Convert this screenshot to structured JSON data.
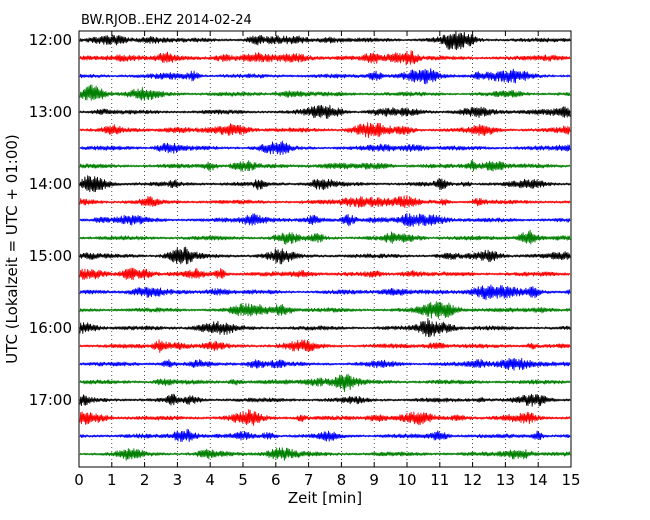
{
  "chart_data": {
    "type": "line",
    "title": "BW.RJOB..EHZ 2014-02-24",
    "xlabel": "Zeit  [min]",
    "ylabel": "UTC (Lokalzeit = UTC + 01:00)",
    "xlim": [
      0,
      15
    ],
    "x_ticks": [
      "0",
      "1",
      "2",
      "3",
      "4",
      "5",
      "6",
      "7",
      "8",
      "9",
      "10",
      "11",
      "12",
      "13",
      "14",
      "15"
    ],
    "y_ticks": [
      "12:00",
      "13:00",
      "14:00",
      "15:00",
      "16:00",
      "17:00"
    ],
    "grid": "vertical dotted lines at each minute",
    "trace_colors": [
      "#000000",
      "#ff0000",
      "#0000ff",
      "#008000"
    ],
    "traces": [
      {
        "start": "12:00",
        "color": "#000000"
      },
      {
        "start": "12:15",
        "color": "#ff0000"
      },
      {
        "start": "12:30",
        "color": "#0000ff"
      },
      {
        "start": "12:45",
        "color": "#008000"
      },
      {
        "start": "13:00",
        "color": "#000000"
      },
      {
        "start": "13:15",
        "color": "#ff0000"
      },
      {
        "start": "13:30",
        "color": "#0000ff"
      },
      {
        "start": "13:45",
        "color": "#008000"
      },
      {
        "start": "14:00",
        "color": "#000000"
      },
      {
        "start": "14:15",
        "color": "#ff0000"
      },
      {
        "start": "14:30",
        "color": "#0000ff"
      },
      {
        "start": "14:45",
        "color": "#008000"
      },
      {
        "start": "15:00",
        "color": "#000000"
      },
      {
        "start": "15:15",
        "color": "#ff0000"
      },
      {
        "start": "15:30",
        "color": "#0000ff"
      },
      {
        "start": "15:45",
        "color": "#008000"
      },
      {
        "start": "16:00",
        "color": "#000000"
      },
      {
        "start": "16:15",
        "color": "#ff0000"
      },
      {
        "start": "16:30",
        "color": "#0000ff"
      },
      {
        "start": "16:45",
        "color": "#008000"
      },
      {
        "start": "17:00",
        "color": "#000000"
      },
      {
        "start": "17:15",
        "color": "#ff0000"
      },
      {
        "start": "17:30",
        "color": "#0000ff"
      },
      {
        "start": "17:45",
        "color": "#008000"
      }
    ]
  }
}
